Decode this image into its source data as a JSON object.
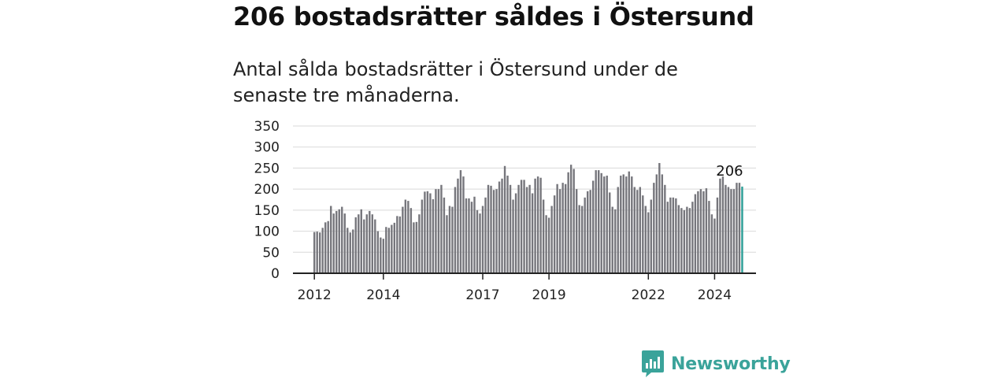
{
  "title": "206 bostadsrätter såldes i Östersund",
  "subtitle": "Antal sålda bostadsrätter i Östersund under de senaste tre månaderna.",
  "brand": {
    "name": "Newsworthy",
    "color": "#3aa39a",
    "icon": "newsworthy-chart-logo-icon"
  },
  "colors": {
    "bar": "#76767c",
    "highlight": "#2a9d96",
    "grid": "#d9d9d9",
    "axis": "#222222"
  },
  "chart_data": {
    "type": "bar",
    "title": "",
    "xlabel": "",
    "ylabel": "",
    "ylim": [
      0,
      350
    ],
    "yticks": [
      "0",
      "50",
      "100",
      "150",
      "200",
      "250",
      "300",
      "350"
    ],
    "xticks": [
      {
        "label": "2012",
        "index": 0
      },
      {
        "label": "2014",
        "index": 25
      },
      {
        "label": "2017",
        "index": 61
      },
      {
        "label": "2019",
        "index": 85
      },
      {
        "label": "2022",
        "index": 121
      },
      {
        "label": "2024",
        "index": 145
      }
    ],
    "grid": true,
    "legend": "none",
    "x_description": "monthly, rolling three-month totals",
    "highlight_last": true,
    "last_value_label": "206",
    "values": [
      98,
      99,
      97,
      108,
      121,
      124,
      160,
      142,
      148,
      152,
      158,
      142,
      108,
      97,
      104,
      133,
      140,
      152,
      128,
      140,
      148,
      140,
      128,
      100,
      85,
      82,
      110,
      108,
      115,
      120,
      136,
      135,
      158,
      175,
      172,
      155,
      121,
      122,
      140,
      175,
      194,
      195,
      190,
      176,
      200,
      200,
      210,
      180,
      138,
      160,
      158,
      205,
      225,
      245,
      230,
      178,
      178,
      170,
      182,
      150,
      142,
      160,
      180,
      210,
      208,
      198,
      200,
      218,
      225,
      255,
      232,
      210,
      175,
      190,
      210,
      222,
      222,
      205,
      210,
      190,
      225,
      230,
      227,
      175,
      138,
      132,
      160,
      185,
      212,
      200,
      215,
      212,
      240,
      258,
      248,
      200,
      162,
      160,
      180,
      195,
      198,
      220,
      245,
      245,
      238,
      230,
      232,
      192,
      158,
      152,
      205,
      232,
      235,
      230,
      242,
      230,
      205,
      198,
      205,
      185,
      160,
      145,
      175,
      215,
      235,
      262,
      235,
      210,
      170,
      180,
      180,
      178,
      162,
      155,
      150,
      158,
      155,
      170,
      188,
      195,
      200,
      195,
      202,
      172,
      140,
      130,
      180,
      225,
      230,
      210,
      205,
      200,
      200,
      215,
      215,
      206
    ]
  }
}
